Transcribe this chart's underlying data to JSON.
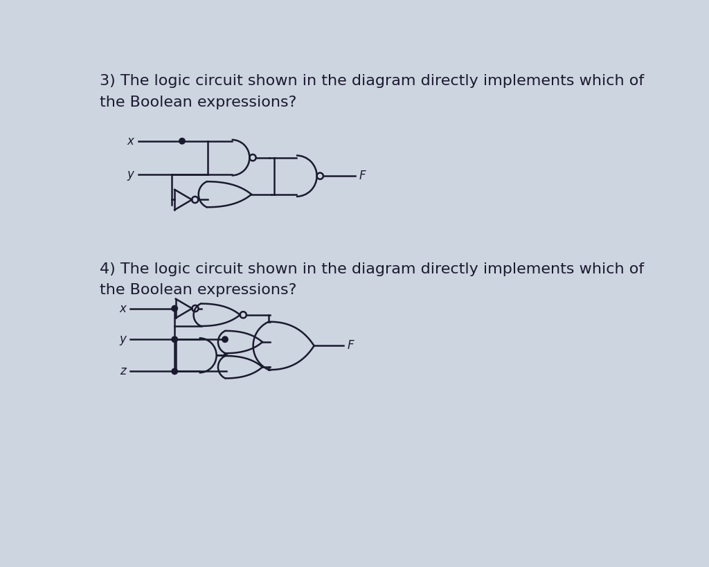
{
  "bg_color": "#cdd5e0",
  "line_color": "#1a1a2e",
  "text_color": "#1a1a2e",
  "q3_text_line1": "3) The logic circuit shown in the diagram directly implements which of",
  "q3_text_line2": "the Boolean expressions?",
  "q4_text_line1": "4) The logic circuit shown in the diagram directly implements which of",
  "q4_text_line2": "the Boolean expressions?",
  "font_size_question": 16,
  "font_size_label": 12,
  "lw": 1.8,
  "dot_r": 0.055,
  "bubble_r": 0.06
}
